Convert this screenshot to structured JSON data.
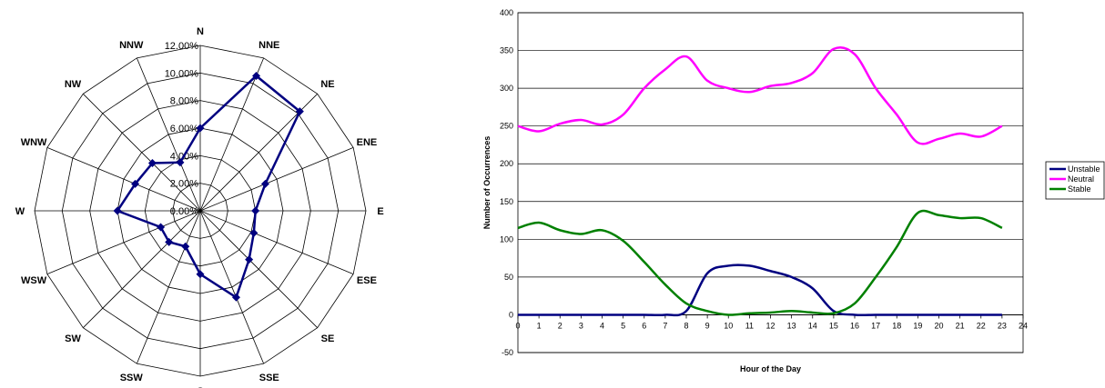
{
  "chart_data": [
    {
      "type": "radar",
      "directions": [
        "N",
        "NNE",
        "NE",
        "ENE",
        "E",
        "ESE",
        "SE",
        "SSE",
        "S",
        "SSW",
        "SW",
        "WSW",
        "W",
        "WNW",
        "NW",
        "NNW"
      ],
      "radial_ticks": [
        "0.00%",
        "2.00%",
        "4.00%",
        "6.00%",
        "8.00%",
        "10.00%",
        "12.00%"
      ],
      "rmax": 12,
      "series": [
        {
          "values": [
            6.0,
            10.6,
            10.2,
            5.1,
            4.0,
            4.2,
            5.0,
            6.8,
            4.6,
            2.8,
            3.2,
            3.1,
            6.0,
            5.1,
            4.9,
            3.8
          ]
        }
      ],
      "colors": {
        "series": "#000080",
        "grid": "#000000"
      }
    },
    {
      "type": "line",
      "xlabel": "Hour of the Day",
      "ylabel": "Number of Occurrences",
      "x": [
        0,
        1,
        2,
        3,
        4,
        5,
        6,
        7,
        8,
        9,
        10,
        11,
        12,
        13,
        14,
        15,
        16,
        17,
        18,
        19,
        20,
        21,
        22,
        23
      ],
      "xlim": [
        0,
        24
      ],
      "ylim": [
        -50,
        400
      ],
      "x_ticks": [
        "0",
        "1",
        "2",
        "3",
        "4",
        "5",
        "6",
        "7",
        "8",
        "9",
        "10",
        "11",
        "12",
        "13",
        "14",
        "15",
        "16",
        "17",
        "18",
        "19",
        "20",
        "21",
        "22",
        "23",
        "24"
      ],
      "y_ticks": [
        "-50",
        "0",
        "50",
        "100",
        "150",
        "200",
        "250",
        "300",
        "350",
        "400"
      ],
      "grid": true,
      "legend": "right",
      "series": [
        {
          "name": "Unstable",
          "color": "#000080",
          "values": [
            0,
            0,
            0,
            0,
            0,
            0,
            0,
            0,
            5,
            55,
            65,
            65,
            58,
            50,
            35,
            5,
            0,
            0,
            0,
            0,
            0,
            0,
            0,
            0
          ]
        },
        {
          "name": "Neutral",
          "color": "#ff00ff",
          "values": [
            250,
            243,
            253,
            258,
            252,
            265,
            300,
            325,
            342,
            310,
            300,
            295,
            303,
            307,
            320,
            352,
            345,
            300,
            265,
            228,
            233,
            240,
            236,
            250
          ]
        },
        {
          "name": "Stable",
          "color": "#008000",
          "values": [
            115,
            122,
            112,
            107,
            112,
            98,
            70,
            40,
            15,
            5,
            0,
            2,
            3,
            5,
            3,
            2,
            15,
            50,
            90,
            135,
            132,
            128,
            128,
            115
          ]
        }
      ]
    }
  ]
}
